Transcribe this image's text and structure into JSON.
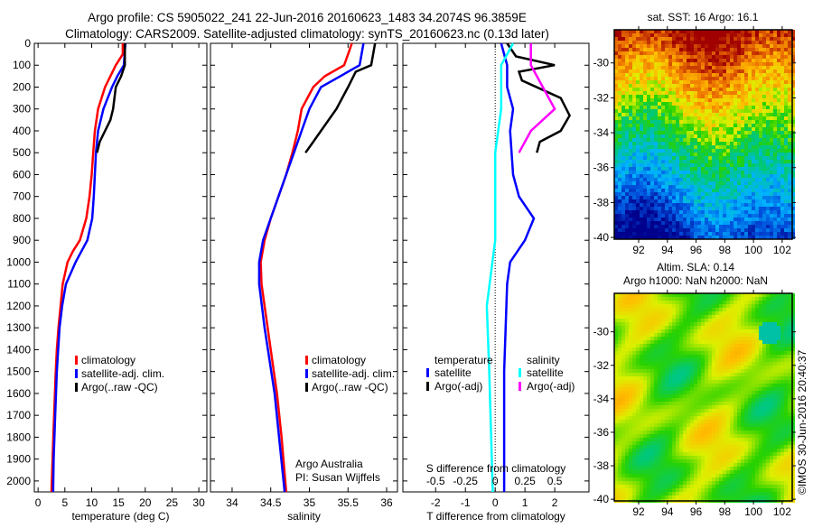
{
  "title_line1": "Argo profile: CS 5905022_241 22-Jun-2016 20160623_1483 34.2074S 96.3859E",
  "title_line2": "Climatology: CARS2009. Satellite-adjusted climatology: synTS_20160623.nc (0.13d later)",
  "copyright": "©IMOS 30-Jun-2016 20:40:37",
  "colors": {
    "climatology": "#ff0000",
    "satellite": "#0000ff",
    "argo": "#000000",
    "s_satellite": "#00ffff",
    "s_argo": "#ff00ff"
  },
  "chart_data": [
    {
      "type": "line",
      "name": "temperature-profile",
      "xlabel": "temperature (deg C)",
      "ylabel": "",
      "xlim": [
        -0.7,
        31.5
      ],
      "ylim": [
        2050,
        0
      ],
      "xticks": [
        0,
        5,
        10,
        15,
        20,
        25,
        30
      ],
      "yticks": [
        0,
        100,
        200,
        300,
        400,
        500,
        600,
        700,
        800,
        900,
        1000,
        1100,
        1200,
        1300,
        1400,
        1500,
        1600,
        1700,
        1800,
        1900,
        2000
      ],
      "legend": [
        "climatology",
        "satellite-adj. clim.",
        "Argo(..raw -QC)"
      ],
      "legend_position": "bottom-center",
      "series": [
        {
          "name": "climatology",
          "color": "#ff0000",
          "depth": [
            0,
            50,
            100,
            200,
            300,
            400,
            500,
            600,
            700,
            800,
            900,
            950,
            1000,
            1100,
            1200,
            1300,
            1400,
            1500,
            1700,
            1900,
            2050
          ],
          "values": [
            15.8,
            15.8,
            14.5,
            12.5,
            11.2,
            10.6,
            10.3,
            10.0,
            9.6,
            9.0,
            7.8,
            6.5,
            5.5,
            4.6,
            4.2,
            3.8,
            3.5,
            3.3,
            3.0,
            2.7,
            2.5
          ]
        },
        {
          "name": "satellite-adj. clim.",
          "color": "#0000ff",
          "depth": [
            0,
            100,
            150,
            200,
            300,
            400,
            500,
            600,
            700,
            800,
            900,
            1000,
            1100,
            1200,
            1300,
            1500,
            1700,
            1900,
            2050
          ],
          "values": [
            16.3,
            16.0,
            14.8,
            13.8,
            12.2,
            11.2,
            10.8,
            10.6,
            10.4,
            10.1,
            9.2,
            7.0,
            5.2,
            4.5,
            4.0,
            3.5,
            3.2,
            2.9,
            2.8
          ]
        },
        {
          "name": "Argo(..raw -QC)",
          "color": "#000000",
          "depth": [
            0,
            100,
            150,
            200,
            300,
            350,
            400,
            450,
            500
          ],
          "values": [
            16.2,
            16.2,
            15.5,
            14.5,
            14.0,
            13.5,
            12.5,
            11.5,
            11.0
          ]
        }
      ]
    },
    {
      "type": "line",
      "name": "salinity-profile",
      "xlabel": "salinity",
      "xlim": [
        33.72,
        36.14
      ],
      "ylim": [
        2050,
        0
      ],
      "xticks": [
        34,
        34.5,
        35,
        35.5,
        36
      ],
      "legend": [
        "climatology",
        "satellite-adj. clim.",
        "Argo(..raw -QC)"
      ],
      "legend_position": "bottom-center",
      "annotations": [
        "Argo Australia",
        "PI: Susan Wijffels"
      ],
      "series": [
        {
          "name": "climatology",
          "color": "#ff0000",
          "depth": [
            0,
            50,
            100,
            150,
            200,
            300,
            400,
            500,
            600,
            700,
            800,
            900,
            1000,
            1100,
            1200,
            1400,
            1600,
            1800,
            2050
          ],
          "values": [
            35.55,
            35.5,
            35.45,
            35.2,
            35.05,
            34.9,
            34.85,
            34.78,
            34.7,
            34.6,
            34.5,
            34.42,
            34.37,
            34.38,
            34.42,
            34.5,
            34.58,
            34.64,
            34.7
          ]
        },
        {
          "name": "satellite-adj. clim.",
          "color": "#0000ff",
          "depth": [
            0,
            100,
            150,
            200,
            300,
            400,
            500,
            600,
            800,
            900,
            1000,
            1100,
            1300,
            1600,
            2050
          ],
          "values": [
            35.7,
            35.65,
            35.4,
            35.15,
            35.0,
            34.9,
            34.8,
            34.7,
            34.5,
            34.4,
            34.35,
            34.35,
            34.42,
            34.55,
            34.68
          ]
        },
        {
          "name": "Argo(..raw -QC)",
          "color": "#000000",
          "depth": [
            0,
            100,
            130,
            200,
            300,
            400,
            450,
            500
          ],
          "values": [
            35.85,
            35.8,
            35.6,
            35.5,
            35.35,
            35.15,
            35.05,
            34.95
          ]
        }
      ]
    },
    {
      "type": "line",
      "name": "difference-profile",
      "xlabel": "T difference from climatology",
      "x2label": "S difference from climatology",
      "xlim": [
        -3.1,
        3.15
      ],
      "ylim": [
        2050,
        0
      ],
      "xticks": [
        -2,
        -1,
        0,
        1,
        2
      ],
      "x2ticks": [
        -0.5,
        -0.25,
        0,
        0.25,
        0.5
      ],
      "legend_headers": [
        "temperature",
        "salinity"
      ],
      "legend": [
        "satellite",
        "Argo(-adj)",
        "satellite",
        "Argo(-adj)"
      ],
      "legend_position": "bottom-center",
      "series": [
        {
          "name": "T satellite",
          "color": "#0000ff",
          "axis": "T",
          "depth": [
            0,
            100,
            200,
            300,
            400,
            600,
            700,
            800,
            900,
            1000,
            1100,
            1500,
            2050
          ],
          "values": [
            0.2,
            0.4,
            0.4,
            0.6,
            0.5,
            0.6,
            0.8,
            1.3,
            1.0,
            0.5,
            0.4,
            0.3,
            0.3
          ]
        },
        {
          "name": "T Argo(-adj)",
          "color": "#000000",
          "axis": "T",
          "depth": [
            0,
            60,
            100,
            130,
            170,
            250,
            330,
            400,
            450,
            500
          ],
          "values": [
            0.4,
            0.7,
            2.0,
            0.8,
            0.9,
            2.2,
            2.5,
            2.2,
            1.5,
            1.4
          ]
        },
        {
          "name": "S satellite",
          "color": "#00ffff",
          "axis": "S",
          "depth": [
            0,
            100,
            300,
            500,
            900,
            1200,
            1500,
            2050
          ],
          "values": [
            0.15,
            0.05,
            0.05,
            0.0,
            0.0,
            -0.07,
            -0.05,
            -0.02
          ]
        },
        {
          "name": "S Argo(-adj)",
          "color": "#ff00ff",
          "axis": "S",
          "depth": [
            0,
            100,
            200,
            300,
            400,
            500
          ],
          "values": [
            0.3,
            0.3,
            0.4,
            0.5,
            0.3,
            0.2
          ]
        }
      ]
    },
    {
      "type": "heatmap",
      "name": "sst-map",
      "title": "sat. SST: 16 Argo: 16.1",
      "xlim": [
        90.3,
        102.7
      ],
      "ylim": [
        -40.1,
        -28.1
      ],
      "xticks": [
        92,
        94,
        96,
        98,
        100,
        102
      ],
      "yticks": [
        -30,
        -32,
        -34,
        -36,
        -38,
        -40
      ]
    },
    {
      "type": "heatmap",
      "name": "sla-map",
      "title": "Altim. SLA: 0.14",
      "subtitle": "Argo h1000: NaN h2000: NaN",
      "xlim": [
        90.3,
        102.7
      ],
      "ylim": [
        -40.1,
        -27.7
      ],
      "xticks": [
        92,
        94,
        96,
        98,
        100,
        102
      ],
      "yticks": [
        -30,
        -32,
        -34,
        -36,
        -38,
        -40
      ]
    }
  ]
}
